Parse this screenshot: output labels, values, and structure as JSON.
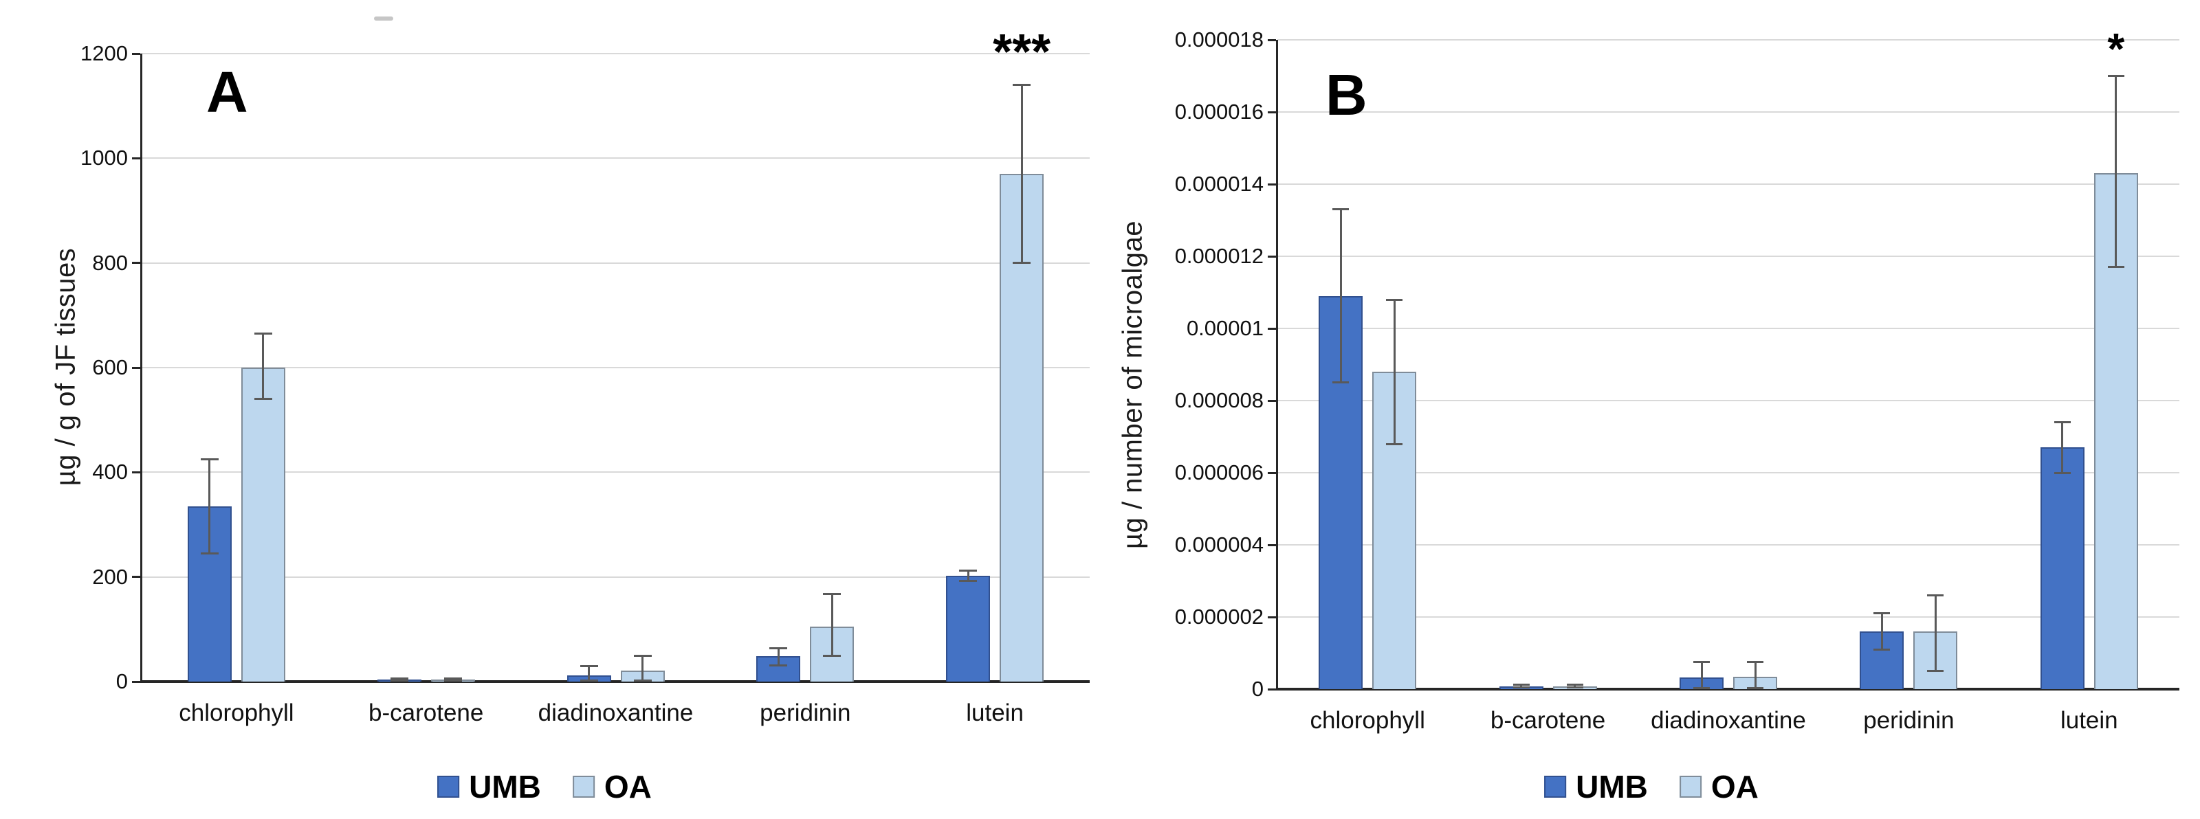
{
  "colors": {
    "umb_fill": "#4472C4",
    "umb_border": "#31508f",
    "oa_fill": "#BDD7EE",
    "oa_border": "#7F8C99",
    "error_bar": "#595959",
    "gridline": "#D9D9D9",
    "axis": "#262626",
    "text": "#000000"
  },
  "chart_data": [
    {
      "id": "A",
      "panel_label": "A",
      "type": "bar",
      "ylabel": "µg / g of JF tissues",
      "xlabel": "",
      "ylim": [
        0,
        1200
      ],
      "ytick_step": 200,
      "ytick_labels": [
        "0",
        "200",
        "400",
        "600",
        "800",
        "1000",
        "1200"
      ],
      "grid": true,
      "legend_position": "bottom",
      "categories": [
        "chlorophyll",
        "b-carotene",
        "diadinoxantine",
        "peridinin",
        "lutein"
      ],
      "series": [
        {
          "name": "UMB",
          "values": [
            335,
            4,
            12,
            49,
            202
          ],
          "err_low": [
            245,
            2,
            0,
            31,
            192
          ],
          "err_high": [
            425,
            6,
            29,
            64,
            212
          ]
        },
        {
          "name": "OA",
          "values": [
            600,
            4,
            21,
            105,
            970
          ],
          "err_low": [
            540,
            2,
            0,
            49,
            800
          ],
          "err_high": [
            665,
            6,
            49,
            167,
            1140
          ]
        }
      ],
      "annotation": {
        "text": "***",
        "category": "lutein",
        "series": "OA"
      }
    },
    {
      "id": "B",
      "panel_label": "B",
      "type": "bar",
      "ylabel": "µg / number of microalgae",
      "xlabel": "",
      "ylim": [
        0,
        1.8e-05
      ],
      "ytick_step": 2e-06,
      "ytick_labels": [
        "0",
        "0.000002",
        "0.000004",
        "0.000006",
        "0.000008",
        "0.00001",
        "0.000012",
        "0.000014",
        "0.000016",
        "0.000018"
      ],
      "grid": true,
      "legend_position": "bottom",
      "categories": [
        "chlorophyll",
        "b-carotene",
        "diadinoxantine",
        "peridinin",
        "lutein"
      ],
      "series": [
        {
          "name": "UMB",
          "values": [
            1.09e-05,
            8e-08,
            3.3e-07,
            1.6e-06,
            6.7e-06
          ],
          "err_low": [
            8.5e-06,
            4e-08,
            0,
            1.1e-06,
            6e-06
          ],
          "err_high": [
            1.33e-05,
            1.2e-07,
            7.5e-07,
            2.1e-06,
            7.4e-06
          ]
        },
        {
          "name": "OA",
          "values": [
            8.8e-06,
            8e-08,
            3.5e-07,
            1.6e-06,
            1.43e-05
          ],
          "err_low": [
            6.8e-06,
            4e-08,
            0,
            5e-07,
            1.17e-05
          ],
          "err_high": [
            1.08e-05,
            1.2e-07,
            7.5e-07,
            2.6e-06,
            1.7e-05
          ]
        }
      ],
      "annotation": {
        "text": "*",
        "category": "lutein",
        "series": "OA"
      }
    }
  ]
}
